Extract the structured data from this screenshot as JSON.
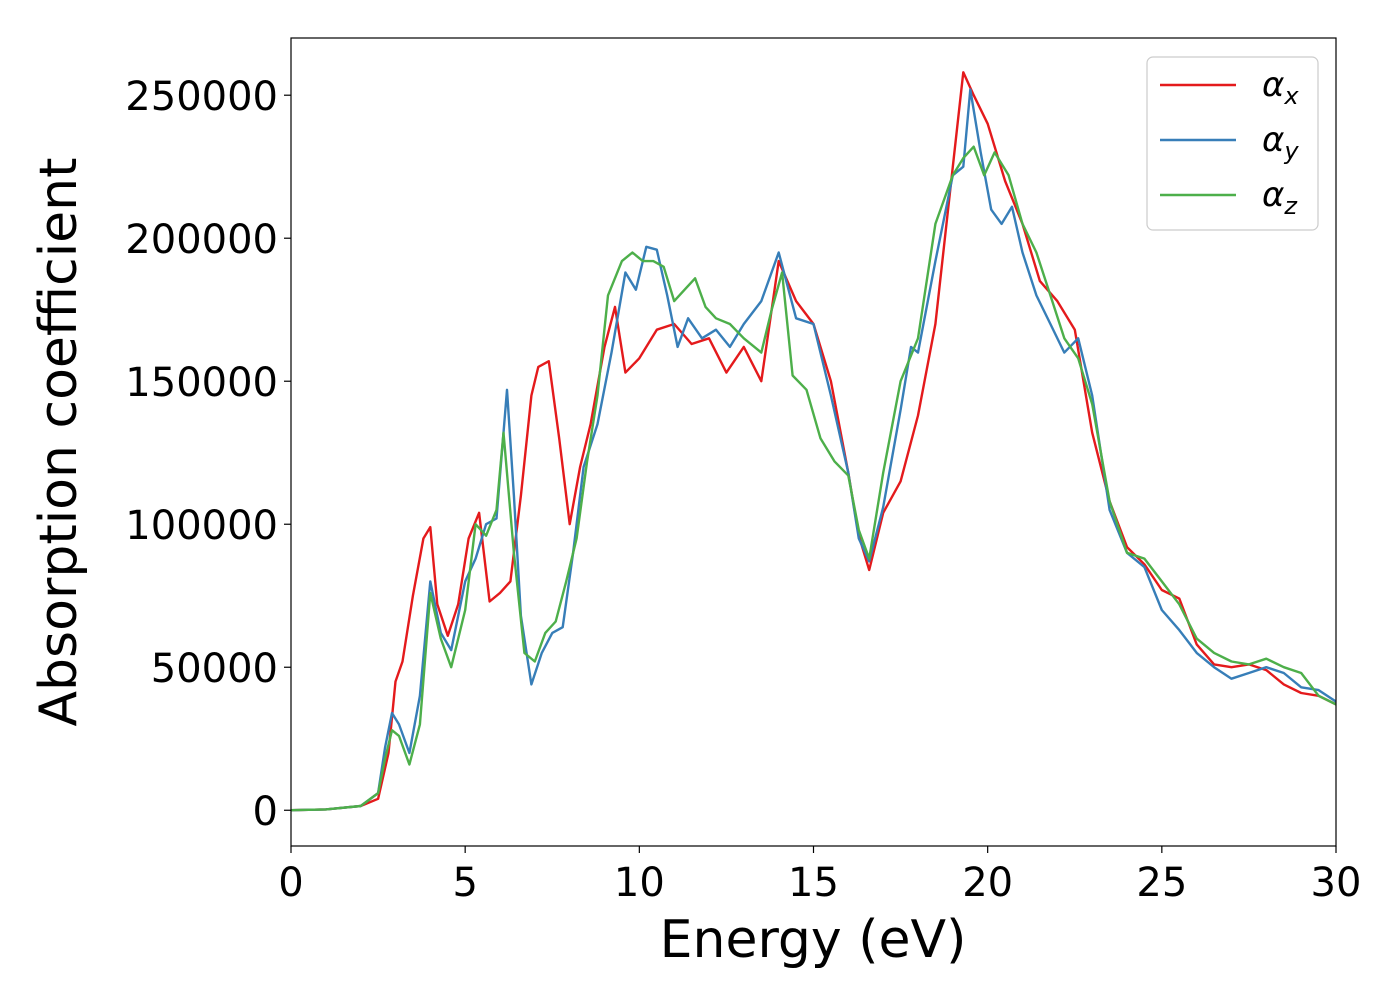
{
  "chart_data": {
    "type": "line",
    "title": "",
    "xlabel": "Energy (eV)",
    "ylabel": "Absorption coefficient",
    "xlim": [
      0,
      30
    ],
    "ylim": [
      -12500,
      270000
    ],
    "xticks": [
      0,
      5,
      10,
      15,
      20,
      25,
      30
    ],
    "xtick_labels": [
      "0",
      "5",
      "10",
      "15",
      "20",
      "25",
      "30"
    ],
    "yticks": [
      0,
      50000,
      100000,
      150000,
      200000,
      250000
    ],
    "ytick_labels": [
      "0",
      "50000",
      "100000",
      "150000",
      "200000",
      "250000"
    ],
    "grid": false,
    "legend_position": "top-right",
    "series": [
      {
        "name": "α_x",
        "legend_base": "α",
        "legend_sub": "x",
        "color": "#e41a1c",
        "x": [
          0,
          1,
          2,
          2.5,
          2.8,
          3.0,
          3.2,
          3.5,
          3.8,
          4.0,
          4.2,
          4.5,
          4.8,
          5.1,
          5.4,
          5.7,
          6.0,
          6.3,
          6.6,
          6.9,
          7.1,
          7.4,
          7.7,
          8.0,
          8.3,
          8.6,
          9.0,
          9.3,
          9.6,
          10.0,
          10.5,
          11.0,
          11.5,
          12.0,
          12.5,
          13.0,
          13.5,
          14.0,
          14.5,
          15.0,
          15.5,
          16.0,
          16.3,
          16.6,
          17.0,
          17.5,
          18.0,
          18.5,
          19.0,
          19.3,
          19.6,
          20.0,
          20.5,
          21.0,
          21.5,
          22.0,
          22.5,
          23.0,
          23.5,
          24.0,
          24.5,
          25.0,
          25.5,
          26.0,
          26.5,
          27.0,
          27.5,
          28.0,
          28.5,
          29.0,
          29.5,
          30.0
        ],
        "y": [
          0,
          300,
          1500,
          4000,
          20000,
          45000,
          52000,
          75000,
          95000,
          99000,
          72000,
          61000,
          72000,
          95000,
          104000,
          73000,
          76000,
          80000,
          110000,
          145000,
          155000,
          157000,
          130000,
          100000,
          120000,
          135000,
          162000,
          176000,
          153000,
          158000,
          168000,
          170000,
          163000,
          165000,
          153000,
          162000,
          150000,
          192000,
          178000,
          170000,
          150000,
          118000,
          96000,
          84000,
          104000,
          115000,
          138000,
          170000,
          225000,
          258000,
          250000,
          240000,
          220000,
          205000,
          185000,
          178000,
          168000,
          132000,
          108000,
          92000,
          86000,
          77000,
          74000,
          58000,
          51000,
          50000,
          51000,
          49000,
          44000,
          41000,
          40000,
          37000
        ]
      },
      {
        "name": "α_y",
        "legend_base": "α",
        "legend_sub": "y",
        "color": "#377eb8",
        "x": [
          0,
          1,
          2,
          2.5,
          2.7,
          2.9,
          3.1,
          3.4,
          3.7,
          4.0,
          4.3,
          4.6,
          5.0,
          5.3,
          5.6,
          5.9,
          6.2,
          6.4,
          6.6,
          6.9,
          7.2,
          7.5,
          7.8,
          8.1,
          8.4,
          8.8,
          9.2,
          9.6,
          9.9,
          10.2,
          10.5,
          10.8,
          11.1,
          11.4,
          11.8,
          12.2,
          12.6,
          13.0,
          13.5,
          14.0,
          14.5,
          15.0,
          15.5,
          16.0,
          16.3,
          16.6,
          17.0,
          17.5,
          17.8,
          18.0,
          18.5,
          19.0,
          19.3,
          19.5,
          19.8,
          20.1,
          20.4,
          20.7,
          21.0,
          21.4,
          21.8,
          22.2,
          22.6,
          23.0,
          23.5,
          24.0,
          24.5,
          25.0,
          25.5,
          26.0,
          26.5,
          27.0,
          27.5,
          28.0,
          28.5,
          29.0,
          29.5,
          30.0
        ],
        "y": [
          0,
          300,
          1500,
          6000,
          22000,
          34000,
          30000,
          20000,
          40000,
          80000,
          62000,
          56000,
          80000,
          88000,
          100000,
          102000,
          147000,
          110000,
          68000,
          44000,
          55000,
          62000,
          64000,
          90000,
          120000,
          135000,
          160000,
          188000,
          182000,
          197000,
          196000,
          180000,
          162000,
          172000,
          165000,
          168000,
          162000,
          170000,
          178000,
          195000,
          172000,
          170000,
          145000,
          118000,
          95000,
          87000,
          106000,
          140000,
          162000,
          160000,
          192000,
          222000,
          225000,
          252000,
          230000,
          210000,
          205000,
          211000,
          195000,
          180000,
          170000,
          160000,
          165000,
          145000,
          105000,
          90000,
          85000,
          70000,
          63000,
          55000,
          50000,
          46000,
          48000,
          50000,
          48000,
          43000,
          42000,
          38000
        ]
      },
      {
        "name": "α_z",
        "legend_base": "α",
        "legend_sub": "z",
        "color": "#4daf4a",
        "x": [
          0,
          1,
          2,
          2.5,
          2.7,
          2.9,
          3.1,
          3.4,
          3.7,
          4.0,
          4.3,
          4.6,
          5.0,
          5.3,
          5.6,
          5.9,
          6.1,
          6.4,
          6.7,
          7.0,
          7.3,
          7.6,
          7.9,
          8.2,
          8.5,
          8.8,
          9.1,
          9.5,
          9.8,
          10.1,
          10.4,
          10.7,
          11.0,
          11.3,
          11.6,
          11.9,
          12.2,
          12.6,
          13.0,
          13.5,
          13.8,
          14.1,
          14.4,
          14.8,
          15.2,
          15.6,
          16.0,
          16.3,
          16.6,
          17.0,
          17.5,
          18.0,
          18.5,
          19.0,
          19.3,
          19.6,
          19.9,
          20.2,
          20.6,
          21.0,
          21.4,
          21.8,
          22.2,
          22.6,
          23.0,
          23.5,
          24.0,
          24.5,
          25.0,
          25.5,
          26.0,
          26.5,
          27.0,
          27.5,
          28.0,
          28.5,
          29.0,
          29.5,
          30.0
        ],
        "y": [
          0,
          300,
          1500,
          6000,
          18000,
          28000,
          26000,
          16000,
          30000,
          76000,
          60000,
          50000,
          70000,
          100000,
          96000,
          105000,
          132000,
          90000,
          55000,
          52000,
          62000,
          66000,
          80000,
          95000,
          122000,
          145000,
          180000,
          192000,
          195000,
          192000,
          192000,
          190000,
          178000,
          182000,
          186000,
          176000,
          172000,
          170000,
          165000,
          160000,
          175000,
          188000,
          152000,
          147000,
          130000,
          122000,
          117000,
          98000,
          88000,
          118000,
          150000,
          165000,
          205000,
          222000,
          228000,
          232000,
          222000,
          230000,
          222000,
          205000,
          195000,
          180000,
          165000,
          158000,
          142000,
          108000,
          90000,
          88000,
          80000,
          72000,
          60000,
          55000,
          52000,
          51000,
          53000,
          50000,
          48000,
          40000,
          37000
        ]
      }
    ]
  }
}
